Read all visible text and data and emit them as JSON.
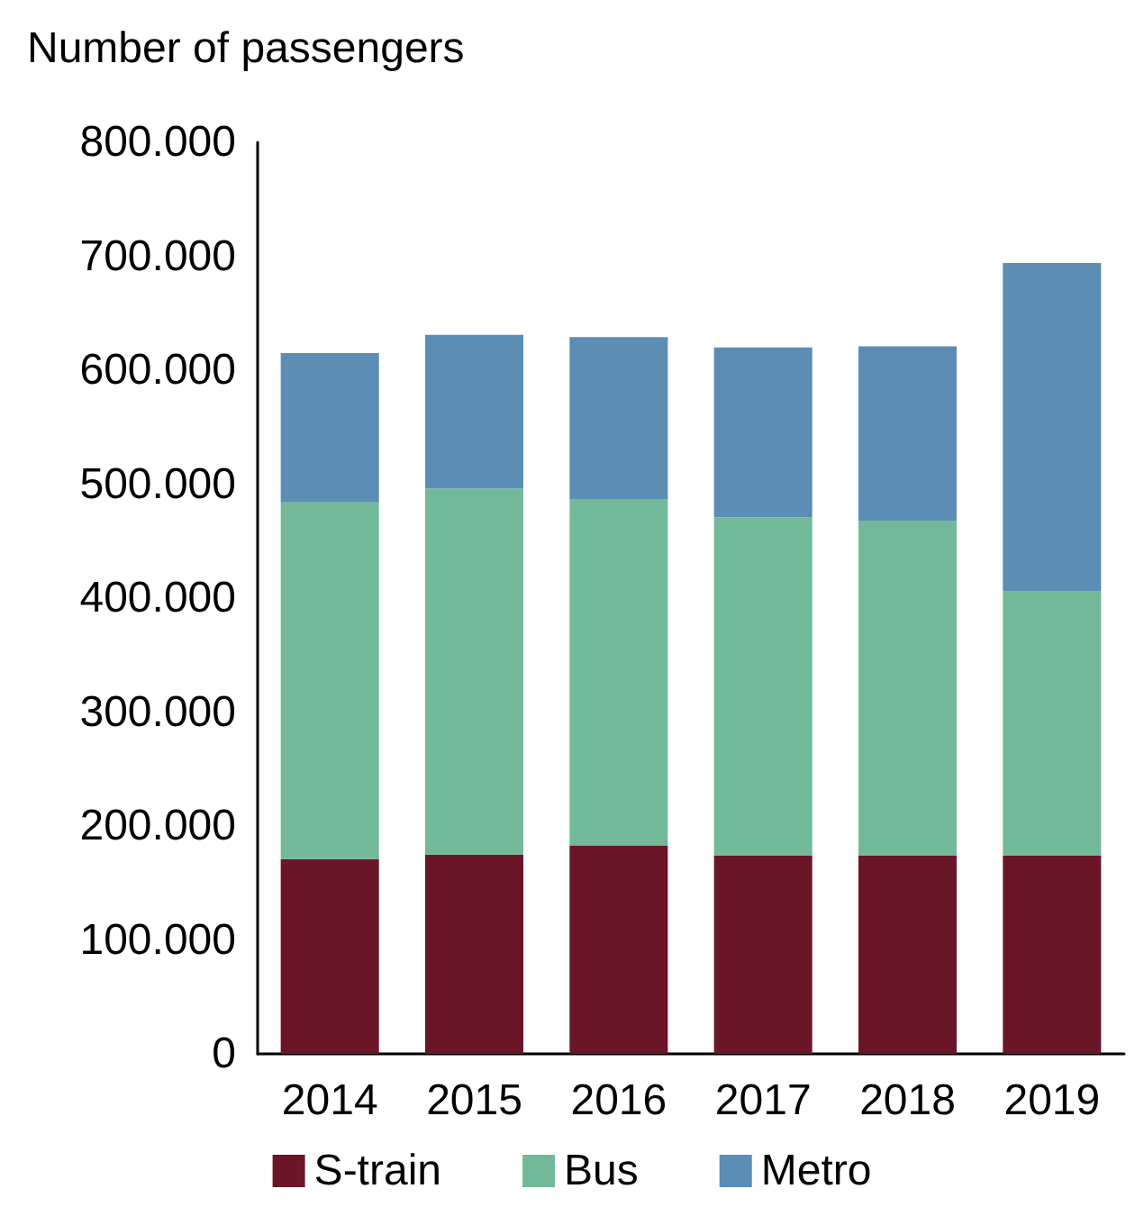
{
  "chart_data": {
    "type": "bar",
    "stacked": true,
    "ylabel": "Number of passengers",
    "categories": [
      "2014",
      "2015",
      "2016",
      "2017",
      "2018",
      "2019"
    ],
    "series": [
      {
        "name": "S-train",
        "color": "#6b1626",
        "values": [
          171000,
          175000,
          183000,
          174000,
          174000,
          174000
        ]
      },
      {
        "name": "Bus",
        "color": "#72b99a",
        "values": [
          313000,
          321000,
          304000,
          297000,
          294000,
          232000
        ]
      },
      {
        "name": "Metro",
        "color": "#5b8db5",
        "values": [
          131000,
          135000,
          142000,
          149000,
          153000,
          288000
        ]
      }
    ],
    "ylim": [
      0,
      800000
    ],
    "yticks": [
      0,
      {
        "value": 100000,
        "label": "100.000"
      },
      {
        "value": 200000,
        "label": "200.000"
      },
      {
        "value": 300000,
        "label": "300.000"
      },
      {
        "value": 400000,
        "label": "400.000"
      },
      {
        "value": 500000,
        "label": "500.000"
      },
      {
        "value": 600000,
        "label": "600.000"
      },
      {
        "value": 700000,
        "label": "700.000"
      },
      {
        "value": 800000,
        "label": "800.000"
      }
    ],
    "grid": false,
    "legend": "bottom"
  }
}
